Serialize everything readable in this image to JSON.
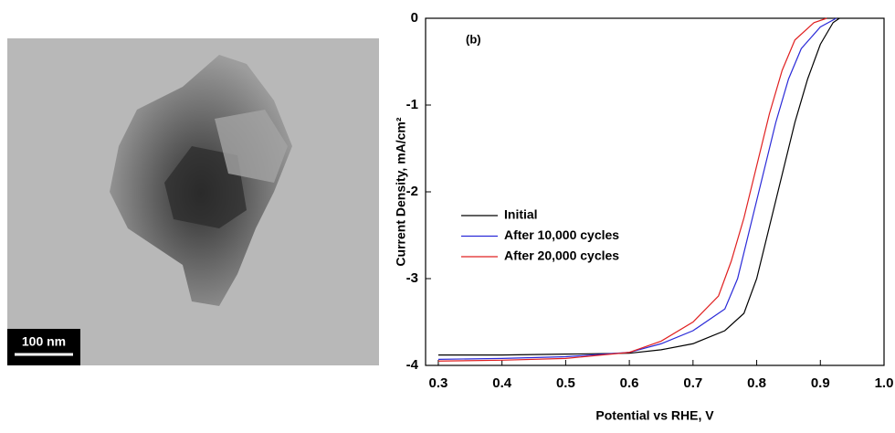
{
  "image": {
    "scale_label": "100 nm"
  },
  "chart_data": {
    "type": "line",
    "annotation": "(b)",
    "xlabel": "Potential vs RHE, V",
    "ylabel": "Current Density, mA/cm²",
    "xlim": [
      0.28,
      1.0
    ],
    "ylim": [
      -4,
      0
    ],
    "xticks": [
      0.3,
      0.4,
      0.5,
      0.6,
      0.7,
      0.8,
      0.9,
      {
        "value": 1,
        "label": "1.0"
      }
    ],
    "yticks": [
      0,
      -1,
      -2,
      -3,
      -4
    ],
    "legend": "middle-left",
    "series": [
      {
        "name": "Initial",
        "color": "#000000",
        "x": [
          0.3,
          0.4,
          0.5,
          0.6,
          0.65,
          0.7,
          0.75,
          0.78,
          0.8,
          0.82,
          0.84,
          0.86,
          0.88,
          0.9,
          0.92,
          0.93
        ],
        "values": [
          -3.88,
          -3.88,
          -3.87,
          -3.86,
          -3.82,
          -3.75,
          -3.6,
          -3.4,
          -3.0,
          -2.4,
          -1.8,
          -1.2,
          -0.7,
          -0.3,
          -0.05,
          0
        ]
      },
      {
        "name": "After 10,000 cycles",
        "color": "#2a2ad8",
        "x": [
          0.3,
          0.4,
          0.5,
          0.6,
          0.65,
          0.7,
          0.75,
          0.77,
          0.79,
          0.81,
          0.83,
          0.85,
          0.87,
          0.9,
          0.925
        ],
        "values": [
          -3.93,
          -3.92,
          -3.9,
          -3.85,
          -3.75,
          -3.6,
          -3.35,
          -3.0,
          -2.4,
          -1.8,
          -1.2,
          -0.7,
          -0.35,
          -0.1,
          0
        ]
      },
      {
        "name": "After 20,000 cycles",
        "color": "#e02020",
        "x": [
          0.3,
          0.4,
          0.5,
          0.6,
          0.65,
          0.7,
          0.74,
          0.76,
          0.78,
          0.8,
          0.82,
          0.84,
          0.86,
          0.89,
          0.91
        ],
        "values": [
          -3.95,
          -3.94,
          -3.92,
          -3.85,
          -3.72,
          -3.5,
          -3.2,
          -2.8,
          -2.3,
          -1.7,
          -1.1,
          -0.6,
          -0.25,
          -0.05,
          0
        ]
      }
    ]
  }
}
